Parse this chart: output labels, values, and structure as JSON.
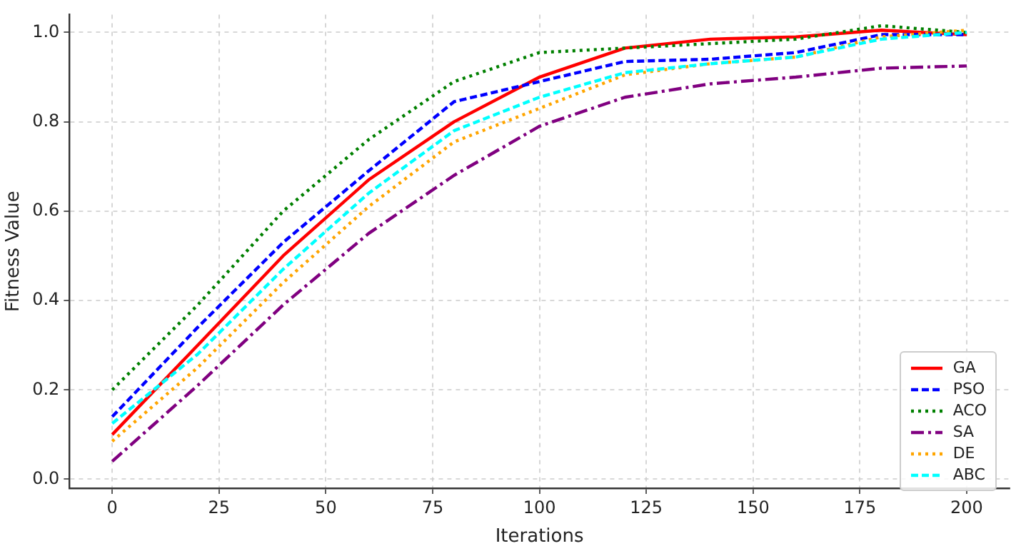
{
  "chart_data": {
    "type": "line",
    "xlabel": "Iterations",
    "ylabel": "Fitness Value",
    "x": [
      0,
      20,
      40,
      60,
      80,
      100,
      120,
      140,
      160,
      180,
      200
    ],
    "xlim": [
      -10,
      210
    ],
    "xticks": [
      0,
      25,
      50,
      75,
      100,
      125,
      150,
      175,
      200
    ],
    "ylim": [
      -0.02,
      1.04
    ],
    "yticks": [
      {
        "value": 0,
        "label": "0.0"
      },
      0.2,
      0.4,
      0.6,
      0.8,
      {
        "value": 1,
        "label": "1.0"
      }
    ],
    "grid": true,
    "legend": "bottom right",
    "marker": "none",
    "series": [
      {
        "name": "GA",
        "color": "#ff0000",
        "line_style": "solid",
        "values": [
          0.1,
          0.3,
          0.5,
          0.67,
          0.8,
          0.9,
          0.965,
          0.985,
          0.99,
          1.005,
          0.995
        ]
      },
      {
        "name": "PSO",
        "color": "#0000ff",
        "line_style": "dashed",
        "values": [
          0.14,
          0.34,
          0.53,
          0.69,
          0.845,
          0.89,
          0.935,
          0.94,
          0.955,
          0.995,
          0.995
        ]
      },
      {
        "name": "ACO",
        "color": "#008000",
        "line_style": "dotted",
        "values": [
          0.2,
          0.39,
          0.6,
          0.76,
          0.89,
          0.955,
          0.965,
          0.975,
          0.985,
          1.015,
          1.0
        ]
      },
      {
        "name": "SA",
        "color": "#800080",
        "line_style": "dashdot",
        "values": [
          0.04,
          0.21,
          0.39,
          0.55,
          0.68,
          0.79,
          0.855,
          0.885,
          0.9,
          0.92,
          0.925
        ]
      },
      {
        "name": "DE",
        "color": "#ffa500",
        "line_style": "dotted",
        "values": [
          0.085,
          0.25,
          0.44,
          0.61,
          0.755,
          0.83,
          0.905,
          0.93,
          0.945,
          0.99,
          1.005
        ]
      },
      {
        "name": "ABC",
        "color": "#00ffff",
        "line_style": "dashed",
        "values": [
          0.125,
          0.28,
          0.47,
          0.64,
          0.78,
          0.855,
          0.91,
          0.93,
          0.945,
          0.985,
          1.0
        ]
      }
    ]
  }
}
